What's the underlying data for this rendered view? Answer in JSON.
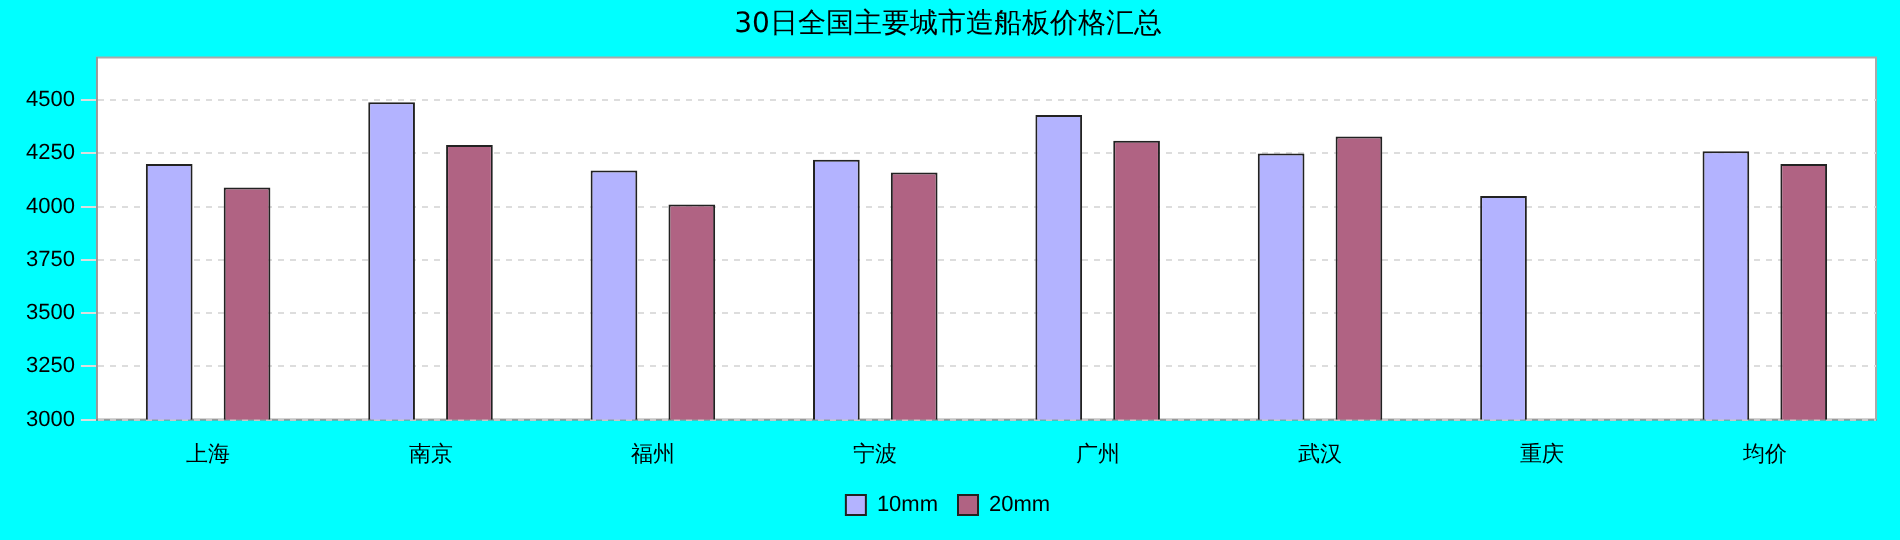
{
  "chart_data": {
    "type": "bar",
    "title": "30日全国主要城市造船板价格汇总",
    "categories": [
      "上海",
      "南京",
      "福州",
      "宁波",
      "广州",
      "武汉",
      "重庆",
      "均价"
    ],
    "series": [
      {
        "name": "10mm",
        "color": "#b3b3ff",
        "values": [
          4200,
          4490,
          4170,
          4220,
          4430,
          4250,
          4050,
          4260
        ]
      },
      {
        "name": "20mm",
        "color": "#b06383",
        "values": [
          4090,
          4290,
          4010,
          4160,
          4310,
          4330,
          null,
          4200
        ]
      }
    ],
    "ylim": [
      3000,
      4700
    ],
    "yticks": [
      3000,
      3250,
      3500,
      3750,
      4000,
      4250,
      4500
    ],
    "grid": "y",
    "legend": "bottom"
  }
}
